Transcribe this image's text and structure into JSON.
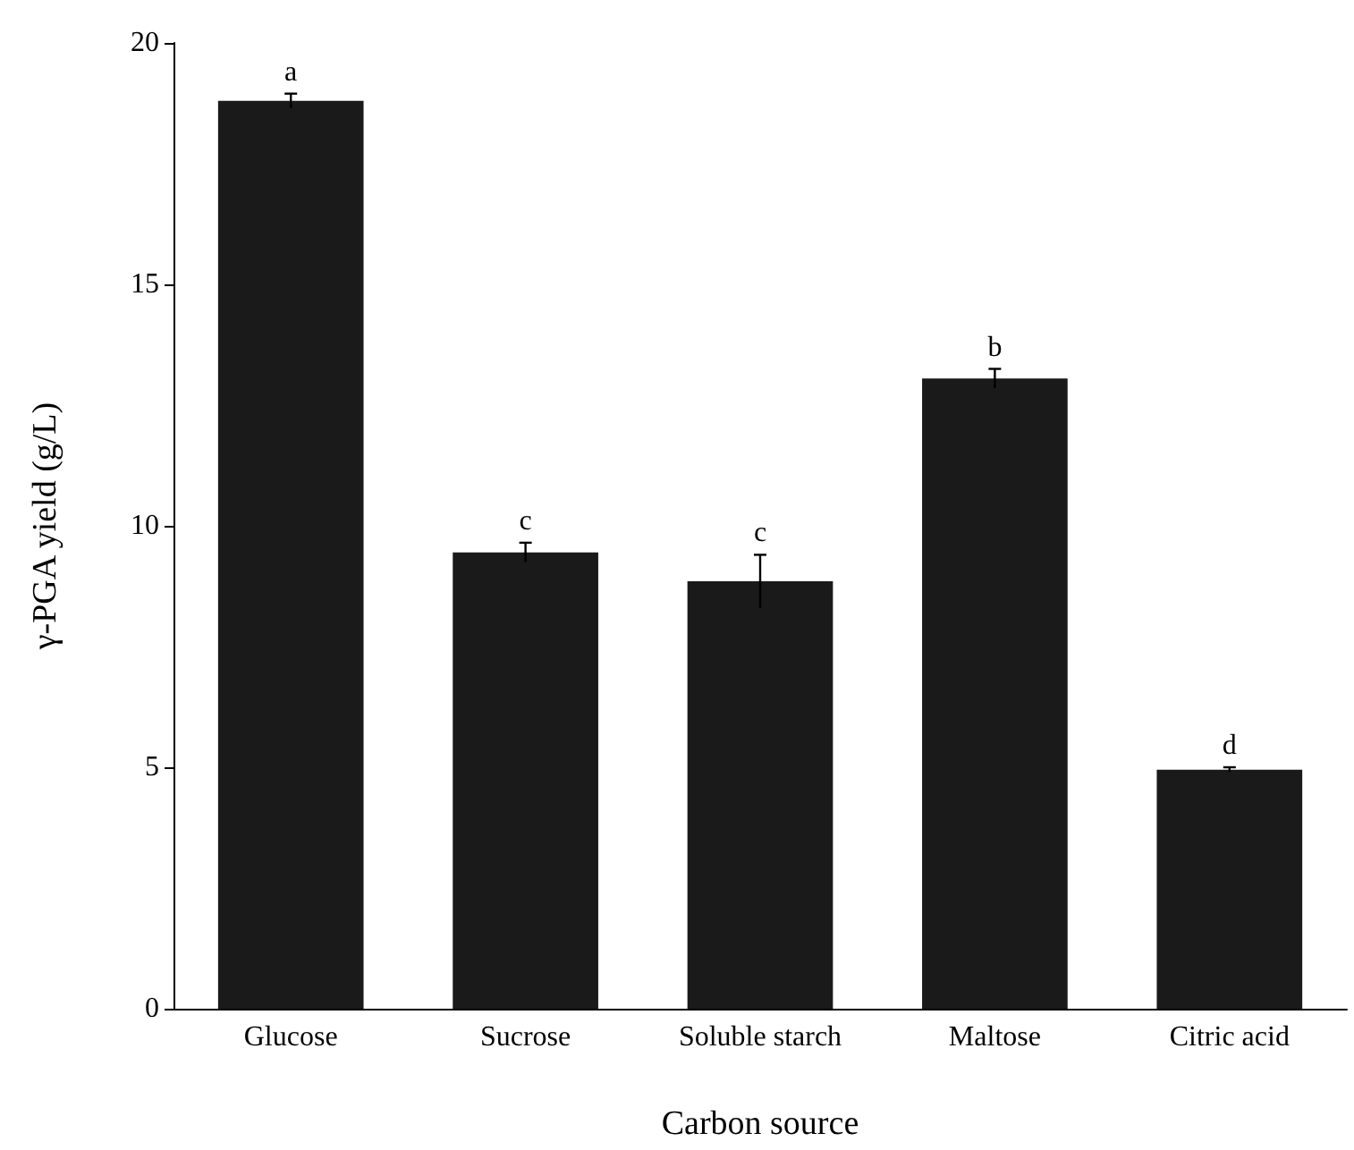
{
  "chart_data": {
    "type": "bar",
    "xlabel": "Carbon source",
    "ylabel": "γ-PGA yield (g/L)",
    "categories": [
      "Glucose",
      "Sucrose",
      "Soluble starch",
      "Maltose",
      "Citric acid"
    ],
    "values": [
      18.8,
      9.45,
      8.85,
      13.05,
      4.95
    ],
    "errors": [
      0.15,
      0.2,
      0.55,
      0.2,
      0.05
    ],
    "color": "#1a1a1a",
    "ylim": [
      0,
      20
    ],
    "yticks": [
      0,
      5,
      10,
      15,
      20
    ],
    "grid": false,
    "annotations": [
      {
        "text": "a",
        "x": "Glucose",
        "y": 18.95
      },
      {
        "text": "c",
        "x": "Sucrose",
        "y": 9.65
      },
      {
        "text": "c",
        "x": "Soluble starch",
        "y": 9.4
      },
      {
        "text": "b",
        "x": "Maltose",
        "y": 13.25
      },
      {
        "text": "d",
        "x": "Citric acid",
        "y": 5.0
      }
    ]
  }
}
